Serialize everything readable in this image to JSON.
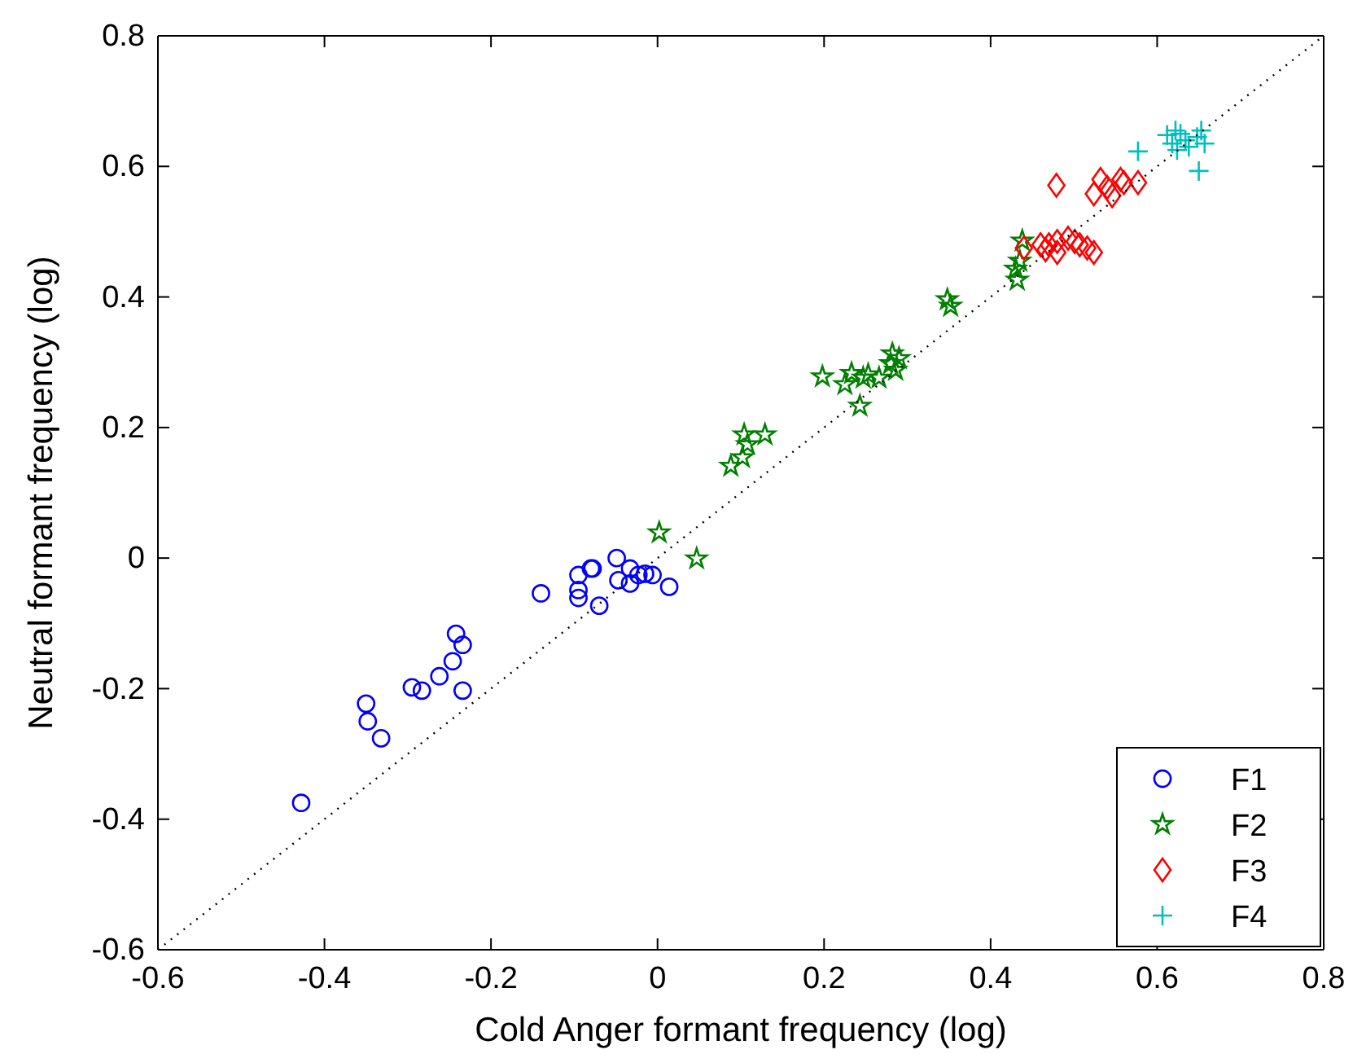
{
  "chart_data": {
    "type": "scatter",
    "xlabel": "Cold Anger formant frequency (log)",
    "ylabel": "Neutral formant frequency (log)",
    "xlim": [
      -0.6,
      0.8
    ],
    "ylim": [
      -0.6,
      0.8
    ],
    "xticks": [
      -0.6,
      -0.4,
      -0.2,
      0,
      0.2,
      0.4,
      0.6,
      0.8
    ],
    "yticks": [
      -0.6,
      -0.4,
      -0.2,
      0,
      0.2,
      0.4,
      0.6,
      0.8
    ],
    "grid": false,
    "legend": "bottom right",
    "series": [
      {
        "name": "F1",
        "color": "#0000ff",
        "marker": "circle",
        "x": [
          -0.428,
          -0.35,
          -0.348,
          -0.332,
          -0.295,
          -0.283,
          -0.262,
          -0.246,
          -0.242,
          -0.234,
          -0.234,
          -0.14,
          -0.095,
          -0.095,
          -0.095,
          -0.08,
          -0.078,
          -0.07,
          -0.049,
          -0.047,
          -0.033,
          -0.033,
          -0.023,
          -0.015,
          -0.006,
          0.014
        ],
        "values": [
          -0.375,
          -0.223,
          -0.25,
          -0.276,
          -0.198,
          -0.203,
          -0.181,
          -0.158,
          -0.116,
          -0.133,
          -0.203,
          -0.054,
          -0.026,
          -0.049,
          -0.061,
          -0.016,
          -0.016,
          -0.073,
          0.0,
          -0.034,
          -0.039,
          -0.016,
          -0.026,
          -0.024,
          -0.026,
          -0.044
        ]
      },
      {
        "name": "F2",
        "color": "#008000",
        "marker": "star",
        "x": [
          0.002,
          0.047,
          0.088,
          0.102,
          0.108,
          0.104,
          0.129,
          0.198,
          0.225,
          0.233,
          0.243,
          0.247,
          0.253,
          0.266,
          0.28,
          0.282,
          0.29,
          0.286,
          0.348,
          0.352,
          0.43,
          0.432,
          0.435,
          0.438
        ],
        "values": [
          0.039,
          -0.001,
          0.141,
          0.154,
          0.174,
          0.189,
          0.189,
          0.278,
          0.266,
          0.283,
          0.233,
          0.276,
          0.281,
          0.276,
          0.298,
          0.313,
          0.306,
          0.288,
          0.396,
          0.386,
          0.443,
          0.426,
          0.455,
          0.486
        ]
      },
      {
        "name": "F3",
        "color": "#ff0000",
        "marker": "diamond",
        "x": [
          0.44,
          0.46,
          0.47,
          0.48,
          0.493,
          0.501,
          0.507,
          0.516,
          0.524,
          0.48,
          0.466,
          0.479,
          0.532,
          0.524,
          0.54,
          0.546,
          0.556,
          0.56,
          0.577
        ],
        "values": [
          0.475,
          0.48,
          0.48,
          0.485,
          0.49,
          0.485,
          0.48,
          0.475,
          0.468,
          0.468,
          0.472,
          0.571,
          0.58,
          0.558,
          0.568,
          0.555,
          0.58,
          0.575,
          0.575
        ]
      },
      {
        "name": "F4",
        "color": "#00bfbf",
        "marker": "cross",
        "x": [
          0.577,
          0.65,
          0.612,
          0.618,
          0.628,
          0.634,
          0.648,
          0.653,
          0.638,
          0.624,
          0.657,
          0.622
        ],
        "values": [
          0.623,
          0.593,
          0.648,
          0.635,
          0.65,
          0.64,
          0.645,
          0.655,
          0.63,
          0.625,
          0.635,
          0.655
        ]
      },
      {
        "type": "line",
        "color": "#000000",
        "line_style": "dotted",
        "marker": "none",
        "x": [
          -0.6,
          0.8
        ],
        "values": [
          -0.6,
          0.8
        ]
      }
    ]
  }
}
